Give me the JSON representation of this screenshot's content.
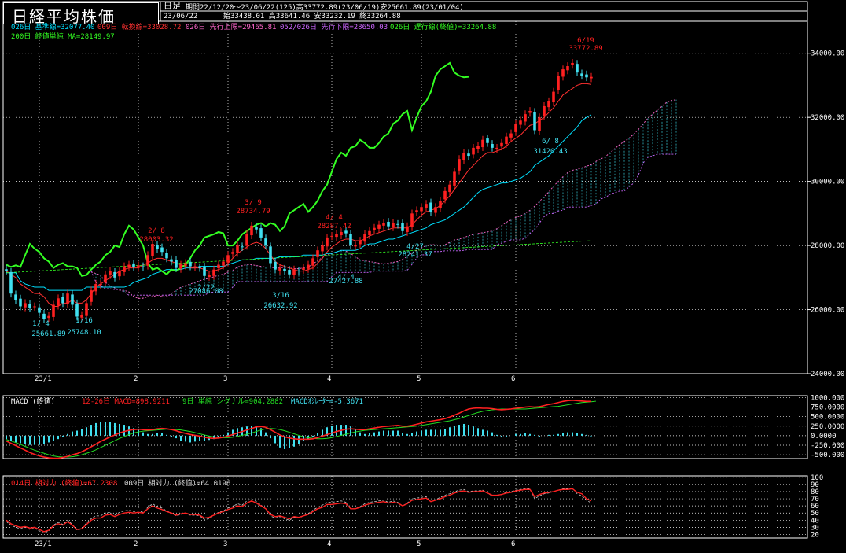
{
  "header": {
    "title": "日経平均株価",
    "periodicity": "日足",
    "period": "期間22/12/20～23/06/22(125)高33772.89(23/06/19)安25661.89(23/01/04)",
    "last_date": "23/06/22",
    "ohlc": "始33438.01 高33641.46 安33232.19 終33264.88"
  },
  "colors": {
    "bg": "#000000",
    "up": "#ff2020",
    "down": "#40e0f0",
    "grid": "#ffffff",
    "kijun": "#00e0ff",
    "tenkan": "#ff3030",
    "senkou_a": "#ff66cc",
    "senkou_b": "#cc66ff",
    "chikou": "#33ff22",
    "ma200": "#33ff22",
    "macd": "#ff2020",
    "signal": "#22dd22",
    "osc": "#40e0f0",
    "rsi14": "#ff2020",
    "rsi9": "#cccccc"
  },
  "legend": {
    "kijun": "026日 基準線=32077.40",
    "tenkan": "009日 転換線=33028.72",
    "senkou_a": "026日 先行上限=29465.81",
    "senkou_b": "052/026日 先行下限=28650.03",
    "chikou": "026日 遅行線(終値)=33264.88",
    "ma200": "200日 終値単純 MA=28149.97"
  },
  "macd_legend": {
    "label": "MACD (終値)",
    "macd": "12-26日 MACD=898.9211",
    "signal": "9日 単純 シグナル=904.2882",
    "osc": "MACDｵｼﾚｰﾀｰ=-5.3671"
  },
  "rsi_legend": {
    "rsi14": "014日 相対力 (終値)=67.2308",
    "rsi9": "009日 相対力 (終値)=64.0196"
  },
  "x_labels": [
    "23/1",
    "2",
    "3",
    "4",
    "5",
    "6"
  ],
  "annotations": [
    {
      "text": "1/ 4",
      "color": "down"
    },
    {
      "text": "25661.89",
      "color": "down"
    },
    {
      "text": "1/16",
      "color": "down"
    },
    {
      "text": "25748.10",
      "color": "down"
    },
    {
      "text": "2/ 8",
      "color": "up"
    },
    {
      "text": "28003.32",
      "color": "up"
    },
    {
      "text": "2/22",
      "color": "down"
    },
    {
      "text": "27046.08",
      "color": "down"
    },
    {
      "text": "3/ 9",
      "color": "up"
    },
    {
      "text": "28734.79",
      "color": "up"
    },
    {
      "text": "3/16",
      "color": "down"
    },
    {
      "text": "26632.92",
      "color": "down"
    },
    {
      "text": "4/ 4",
      "color": "up"
    },
    {
      "text": "28287.42",
      "color": "up"
    },
    {
      "text": "4/ 4",
      "color": "down"
    },
    {
      "text": "27427.88",
      "color": "down"
    },
    {
      "text": "4/27",
      "color": "down"
    },
    {
      "text": "28241.37",
      "color": "down"
    },
    {
      "text": "6/ 8",
      "color": "down"
    },
    {
      "text": "31420.43",
      "color": "down"
    },
    {
      "text": "6/19",
      "color": "up"
    },
    {
      "text": "33772.89",
      "color": "up"
    }
  ],
  "chart_data": [
    {
      "type": "candlestick",
      "title": "日経平均株価 日足",
      "y_ticks": [
        "24000.00",
        "26000.00",
        "28000.00",
        "30000.00",
        "32000.00",
        "34000.00"
      ],
      "ylim": [
        24000,
        35000
      ],
      "dates_start": "22/12/20",
      "dates_end": "23/06/22",
      "close": [
        27200,
        26500,
        26300,
        26100,
        26200,
        26050,
        26100,
        25900,
        25700,
        25800,
        26150,
        26350,
        26200,
        26500,
        26150,
        25780,
        25830,
        26200,
        26600,
        26800,
        26800,
        27100,
        27200,
        27000,
        27200,
        27350,
        27400,
        27330,
        27380,
        27330,
        27700,
        28050,
        27900,
        27800,
        27600,
        27500,
        27300,
        27400,
        27450,
        27350,
        27350,
        27300,
        27050,
        27080,
        27250,
        27400,
        27500,
        27700,
        27800,
        28000,
        27950,
        28350,
        28620,
        28500,
        28250,
        28000,
        27450,
        27250,
        27300,
        27200,
        27100,
        27250,
        27200,
        27300,
        27400,
        27600,
        27850,
        28000,
        28250,
        28300,
        28350,
        28420,
        28380,
        28000,
        28000,
        28150,
        28350,
        28450,
        28550,
        28650,
        28700,
        28600,
        28700,
        28650,
        28450,
        28600,
        29000,
        29100,
        29200,
        29300,
        29050,
        29200,
        29400,
        29700,
        29900,
        30300,
        30700,
        30900,
        30800,
        31050,
        31100,
        31300,
        31200,
        31050,
        31050,
        31200,
        31400,
        31500,
        31800,
        31900,
        32100,
        32200,
        31600,
        32000,
        32350,
        32500,
        32800,
        33300,
        33500,
        33600,
        33700,
        33400,
        33300,
        33250,
        33264.88
      ],
      "kijun": [
        27150,
        27150,
        27150,
        26900,
        26800,
        26750,
        26700,
        26700,
        26700,
        26600,
        26600,
        26600,
        26600,
        26600,
        26600,
        26600,
        26600,
        26700,
        26700,
        26700,
        26700,
        26700,
        26700,
        26700,
        26700,
        26700,
        26750,
        26850,
        26900,
        26950,
        27000,
        27100,
        27150,
        27200,
        27250,
        27250,
        27250,
        27250,
        27300,
        27300,
        27300,
        27350,
        27350,
        27350,
        27350,
        27350,
        27350,
        27400,
        27450,
        27500,
        27550,
        27550,
        27550,
        27600,
        27600,
        27600,
        27600,
        27600,
        27650,
        27650,
        27650,
        27650,
        27650,
        27700,
        27700,
        27700,
        27700,
        27700,
        27750,
        27750,
        27800,
        27850,
        27850,
        27850,
        27850,
        27900,
        28000,
        28050,
        28050,
        28100,
        28150,
        28200,
        28200,
        28250,
        28300,
        28350,
        28400,
        28450,
        28500,
        28550,
        28650,
        28700,
        28750,
        28800,
        28900,
        29000,
        29100,
        29200,
        29350,
        29500,
        29650,
        29750,
        29800,
        29850,
        29900,
        29950,
        29950,
        30000,
        30050,
        30100,
        30200,
        30300,
        30500,
        30600,
        30700,
        30800,
        30950,
        31100,
        31250,
        31400,
        31550,
        31700,
        31900,
        32000,
        32077.4
      ],
      "tenkan": [
        27200,
        27100,
        27000,
        26800,
        26700,
        26600,
        26500,
        26500,
        26400,
        26200,
        26100,
        26100,
        26200,
        26200,
        26300,
        26200,
        26200,
        26300,
        26500,
        26700,
        26800,
        26900,
        27000,
        27100,
        27200,
        27250,
        27300,
        27300,
        27300,
        27400,
        27450,
        27550,
        27600,
        27600,
        27550,
        27500,
        27450,
        27400,
        27350,
        27300,
        27300,
        27300,
        27250,
        27200,
        27200,
        27250,
        27300,
        27450,
        27600,
        27750,
        27850,
        27950,
        28050,
        28100,
        28050,
        27900,
        27700,
        27500,
        27400,
        27350,
        27300,
        27250,
        27200,
        27200,
        27250,
        27300,
        27450,
        27600,
        27800,
        27950,
        28050,
        28150,
        28200,
        28200,
        28150,
        28150,
        28200,
        28300,
        28350,
        28400,
        28450,
        28500,
        28550,
        28550,
        28550,
        28550,
        28650,
        28800,
        28950,
        29050,
        29100,
        29150,
        29250,
        29400,
        29550,
        29750,
        29950,
        30150,
        30350,
        30500,
        30650,
        30800,
        30900,
        30900,
        30950,
        31000,
        31100,
        31250,
        31350,
        31450,
        31600,
        31750,
        31800,
        31900,
        32000,
        32150,
        32300,
        32500,
        32700,
        32800,
        32900,
        33000,
        33050,
        33050,
        33028.72
      ]
    },
    {
      "type": "line",
      "title": "MACD (終値)",
      "y_ticks": [
        "1000.000",
        "750.0000",
        "500.0000",
        "250.0000",
        "0.0000",
        "-250.000",
        "-500.000"
      ],
      "ylim": [
        -600,
        1050
      ],
      "series": [
        {
          "name": "12-26日 MACD",
          "values": [
            -140,
            -200,
            -260,
            -320,
            -380,
            -440,
            -490,
            -530,
            -560,
            -580,
            -590,
            -590,
            -570,
            -540,
            -500,
            -470,
            -420,
            -360,
            -290,
            -220,
            -150,
            -90,
            -30,
            20,
            70,
            110,
            140,
            160,
            170,
            160,
            150,
            160,
            180,
            190,
            180,
            160,
            130,
            90,
            60,
            30,
            10,
            -10,
            -40,
            -60,
            -70,
            -60,
            -40,
            -10,
            30,
            70,
            110,
            150,
            190,
            230,
            240,
            220,
            160,
            90,
            20,
            -30,
            -60,
            -80,
            -90,
            -90,
            -90,
            -80,
            -50,
            -10,
            30,
            70,
            110,
            140,
            170,
            180,
            170,
            160,
            160,
            180,
            200,
            220,
            240,
            250,
            260,
            270,
            250,
            250,
            270,
            300,
            330,
            360,
            380,
            400,
            420,
            450,
            490,
            540,
            590,
            650,
            700,
            720,
            730,
            720,
            720,
            710,
            690,
            680,
            690,
            700,
            720,
            730,
            750,
            760,
            750,
            760,
            790,
            820,
            840,
            870,
            900,
            920,
            930,
            920,
            910,
            900,
            898.92
          ]
        },
        {
          "name": "9日 単純 シグナル",
          "values": [
            -100,
            -140,
            -180,
            -230,
            -280,
            -330,
            -380,
            -420,
            -460,
            -500,
            -530,
            -550,
            -560,
            -560,
            -550,
            -530,
            -500,
            -460,
            -420,
            -370,
            -310,
            -250,
            -190,
            -130,
            -70,
            -20,
            30,
            70,
            100,
            120,
            130,
            140,
            150,
            160,
            170,
            170,
            160,
            150,
            130,
            110,
            80,
            50,
            20,
            -10,
            -30,
            -40,
            -50,
            -50,
            -40,
            -20,
            10,
            40,
            70,
            110,
            150,
            180,
            190,
            180,
            160,
            130,
            90,
            50,
            10,
            -30,
            -50,
            -70,
            -80,
            -80,
            -70,
            -50,
            -20,
            10,
            40,
            70,
            100,
            120,
            140,
            150,
            160,
            170,
            180,
            190,
            200,
            210,
            220,
            230,
            240,
            250,
            270,
            290,
            310,
            330,
            350,
            370,
            390,
            420,
            450,
            490,
            530,
            570,
            610,
            640,
            660,
            680,
            690,
            700,
            700,
            700,
            700,
            700,
            700,
            710,
            720,
            730,
            740,
            750,
            760,
            770,
            790,
            810,
            830,
            850,
            870,
            880,
            890,
            904.29
          ]
        },
        {
          "name": "MACDｵｼﾚｰﾀｰ",
          "values": [
            -40,
            -60,
            -80,
            -90,
            -100,
            -110,
            -110,
            -110,
            -100,
            -80,
            -60,
            -40,
            -10,
            20,
            50,
            60,
            80,
            100,
            130,
            150,
            160,
            160,
            160,
            150,
            140,
            130,
            110,
            90,
            70,
            40,
            20,
            20,
            30,
            30,
            10,
            -10,
            -30,
            -60,
            -70,
            -80,
            -70,
            -60,
            -60,
            -50,
            -40,
            -20,
            10,
            40,
            70,
            90,
            100,
            110,
            120,
            120,
            90,
            40,
            -30,
            -90,
            -140,
            -160,
            -150,
            -130,
            -100,
            -60,
            -40,
            -10,
            30,
            70,
            100,
            120,
            130,
            130,
            130,
            110,
            70,
            40,
            20,
            30,
            40,
            50,
            60,
            60,
            60,
            60,
            30,
            20,
            30,
            50,
            60,
            70,
            70,
            70,
            70,
            80,
            100,
            120,
            130,
            140,
            130,
            110,
            90,
            70,
            60,
            40,
            10,
            -20,
            -10,
            0,
            20,
            20,
            30,
            20,
            10,
            -10,
            0,
            10,
            10,
            20,
            30,
            40,
            40,
            30,
            20,
            10,
            -5.37
          ]
        }
      ]
    },
    {
      "type": "line",
      "title": "相対力",
      "y_ticks": [
        "100",
        "90",
        "80",
        "70",
        "60",
        "50",
        "40",
        "30",
        "20"
      ],
      "ylim": [
        15,
        102
      ],
      "series": [
        {
          "name": "014日 相対力 (終値)",
          "values": [
            40,
            35,
            32,
            30,
            31,
            29,
            30,
            27,
            24,
            26,
            32,
            35,
            33,
            38,
            33,
            27,
            28,
            34,
            40,
            43,
            43,
            47,
            48,
            45,
            48,
            50,
            51,
            50,
            51,
            50,
            56,
            60,
            57,
            55,
            52,
            50,
            47,
            49,
            50,
            48,
            48,
            47,
            43,
            44,
            47,
            50,
            52,
            55,
            57,
            60,
            59,
            64,
            67,
            64,
            60,
            56,
            48,
            45,
            46,
            44,
            42,
            45,
            44,
            46,
            48,
            52,
            56,
            58,
            62,
            62,
            63,
            64,
            63,
            56,
            56,
            58,
            61,
            63,
            64,
            65,
            66,
            64,
            65,
            64,
            60,
            63,
            68,
            69,
            70,
            71,
            66,
            68,
            70,
            73,
            75,
            78,
            80,
            81,
            79,
            80,
            80,
            81,
            78,
            75,
            75,
            76,
            78,
            79,
            81,
            82,
            83,
            83,
            73,
            76,
            78,
            79,
            80,
            82,
            83,
            83,
            84,
            79,
            77,
            70,
            67.23
          ]
        },
        {
          "name": "009日 相対力 (終値)",
          "values": [
            38,
            33,
            30,
            28,
            30,
            27,
            29,
            25,
            22,
            25,
            33,
            37,
            34,
            40,
            34,
            26,
            28,
            36,
            42,
            46,
            46,
            50,
            51,
            47,
            51,
            53,
            54,
            52,
            53,
            51,
            58,
            63,
            59,
            57,
            53,
            50,
            46,
            48,
            50,
            47,
            47,
            46,
            41,
            42,
            47,
            51,
            53,
            57,
            59,
            63,
            61,
            67,
            70,
            66,
            61,
            56,
            46,
            43,
            45,
            42,
            40,
            44,
            43,
            46,
            49,
            54,
            58,
            61,
            65,
            65,
            66,
            67,
            65,
            56,
            56,
            59,
            63,
            65,
            66,
            67,
            68,
            65,
            67,
            65,
            60,
            64,
            70,
            71,
            72,
            73,
            66,
            69,
            72,
            75,
            77,
            80,
            82,
            83,
            80,
            81,
            81,
            82,
            78,
            74,
            74,
            76,
            79,
            80,
            82,
            83,
            84,
            84,
            70,
            74,
            77,
            78,
            80,
            82,
            84,
            84,
            85,
            77,
            74,
            68,
            64.02
          ]
        }
      ]
    }
  ]
}
